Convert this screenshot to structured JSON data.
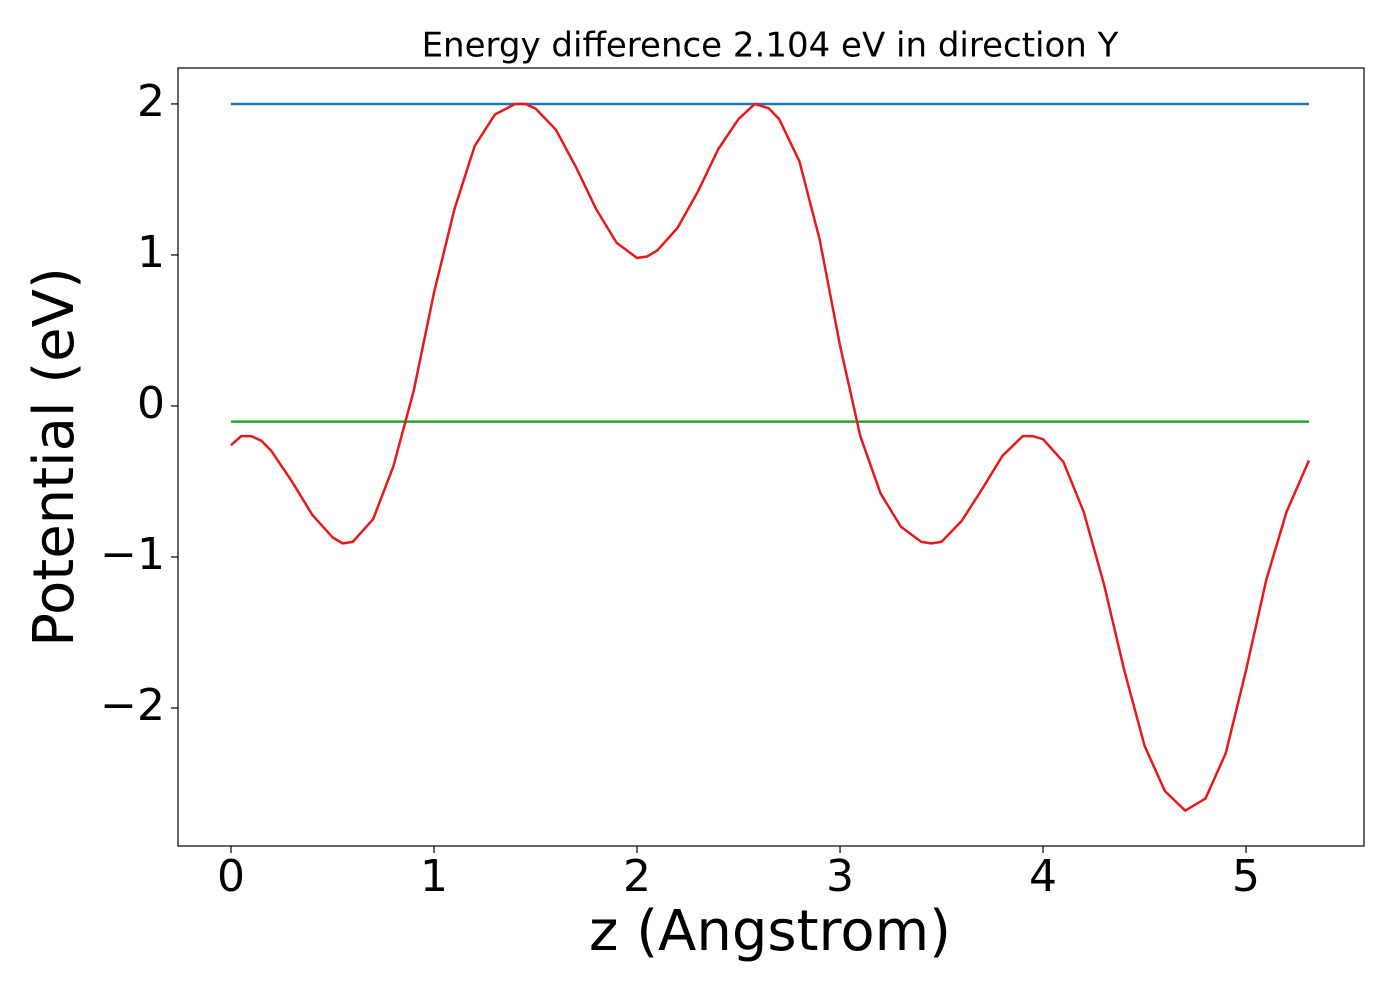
{
  "chart_data": {
    "type": "line",
    "title": "Energy difference 2.104 eV in direction Y",
    "xlabel": "z (Angstrom)",
    "ylabel": "Potential (eV)",
    "xlim": [
      -0.261,
      5.581
    ],
    "ylim": [
      -2.914,
      2.238
    ],
    "xticks": [
      0,
      1,
      2,
      3,
      4,
      5
    ],
    "yticks": [
      {
        "value": -2,
        "label": "−2"
      },
      {
        "value": -1,
        "label": "−1"
      },
      0,
      1,
      2
    ],
    "grid": false,
    "series": [
      {
        "color": "#1f77b4",
        "x": [
          0,
          5.31
        ],
        "values": [
          2.0,
          2.0
        ]
      },
      {
        "color": "#2ca02c",
        "x": [
          0,
          5.31
        ],
        "values": [
          -0.104,
          -0.104
        ]
      },
      {
        "color": "#e41a1c",
        "x": [
          0,
          0.05,
          0.1,
          0.15,
          0.2,
          0.3,
          0.4,
          0.5,
          0.55,
          0.6,
          0.7,
          0.8,
          0.9,
          1.0,
          1.1,
          1.2,
          1.3,
          1.4,
          1.45,
          1.5,
          1.6,
          1.7,
          1.8,
          1.9,
          2.0,
          2.05,
          2.1,
          2.2,
          2.3,
          2.4,
          2.5,
          2.58,
          2.65,
          2.7,
          2.8,
          2.9,
          3.0,
          3.1,
          3.2,
          3.3,
          3.4,
          3.45,
          3.5,
          3.6,
          3.7,
          3.8,
          3.9,
          3.95,
          4.0,
          4.1,
          4.2,
          4.3,
          4.4,
          4.5,
          4.6,
          4.7,
          4.8,
          4.9,
          5.0,
          5.1,
          5.2,
          5.31
        ],
        "values": [
          -0.26,
          -0.2,
          -0.2,
          -0.23,
          -0.3,
          -0.5,
          -0.72,
          -0.87,
          -0.91,
          -0.9,
          -0.75,
          -0.4,
          0.1,
          0.75,
          1.3,
          1.72,
          1.93,
          2.0,
          2.0,
          1.97,
          1.83,
          1.58,
          1.3,
          1.08,
          0.98,
          0.99,
          1.03,
          1.18,
          1.42,
          1.7,
          1.9,
          2.0,
          1.97,
          1.9,
          1.62,
          1.1,
          0.4,
          -0.2,
          -0.58,
          -0.8,
          -0.9,
          -0.91,
          -0.9,
          -0.76,
          -0.55,
          -0.33,
          -0.2,
          -0.2,
          -0.22,
          -0.37,
          -0.7,
          -1.18,
          -1.75,
          -2.25,
          -2.55,
          -2.68,
          -2.6,
          -2.3,
          -1.75,
          -1.15,
          -0.7,
          -0.36
        ]
      }
    ]
  }
}
